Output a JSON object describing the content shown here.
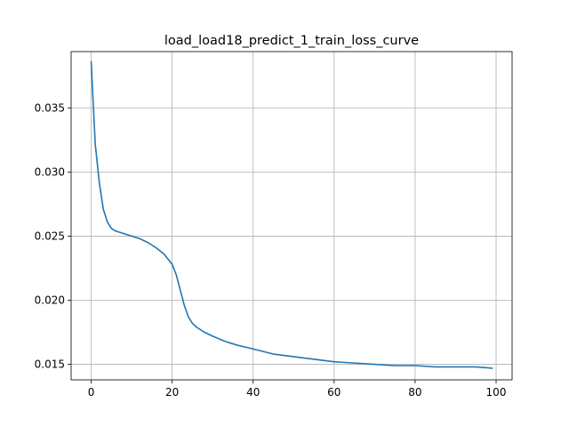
{
  "chart_data": {
    "type": "line",
    "title": "load_load18_predict_1_train_loss_curve",
    "xlabel": "",
    "ylabel": "",
    "xlim": [
      -4.95,
      103.95
    ],
    "ylim": [
      0.01379,
      0.03939
    ],
    "grid": true,
    "x_ticks": [
      0,
      20,
      40,
      60,
      80,
      100
    ],
    "x_tick_labels": [
      "0",
      "20",
      "40",
      "60",
      "80",
      "100"
    ],
    "y_ticks": [
      0.015,
      0.02,
      0.025,
      0.03,
      0.035
    ],
    "y_tick_labels": [
      "0.015",
      "0.020",
      "0.025",
      "0.030",
      "0.035"
    ],
    "series": [
      {
        "color": "#1f77b4",
        "x": [
          0,
          1,
          2,
          3,
          4,
          5,
          6,
          8,
          10,
          12,
          14,
          16,
          18,
          20,
          21,
          22,
          23,
          24,
          25,
          26,
          28,
          30,
          33,
          36,
          40,
          45,
          50,
          55,
          60,
          65,
          70,
          75,
          80,
          85,
          90,
          95,
          99
        ],
        "y": [
          0.0386,
          0.0322,
          0.0292,
          0.0271,
          0.0261,
          0.0256,
          0.0254,
          0.0252,
          0.025,
          0.0248,
          0.0245,
          0.0241,
          0.0236,
          0.0228,
          0.022,
          0.0208,
          0.0196,
          0.0187,
          0.0182,
          0.0179,
          0.0175,
          0.0172,
          0.0168,
          0.0165,
          0.0162,
          0.0158,
          0.0156,
          0.0154,
          0.0152,
          0.0151,
          0.015,
          0.0149,
          0.0149,
          0.0148,
          0.0148,
          0.0148,
          0.0147
        ]
      }
    ]
  }
}
